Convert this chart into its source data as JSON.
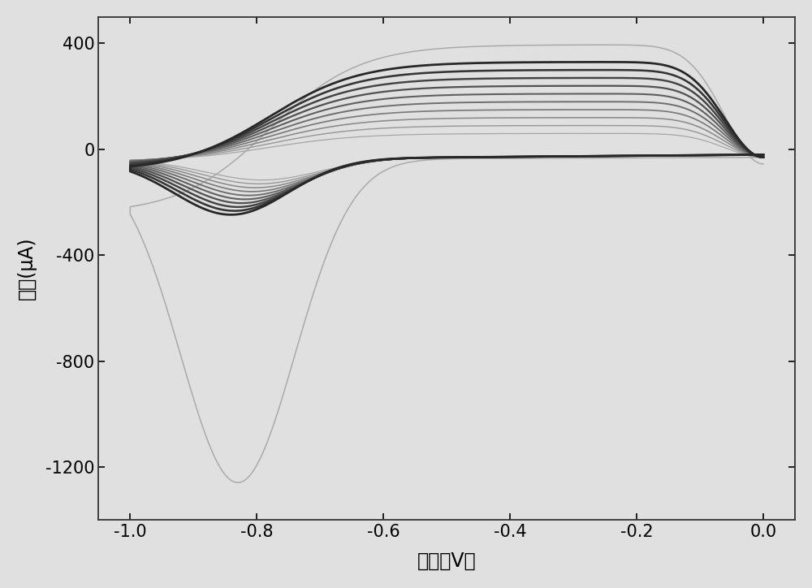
{
  "xlabel": "电压（V）",
  "ylabel": "电流(μA)",
  "xlim": [
    -1.05,
    0.05
  ],
  "ylim": [
    -1400,
    500
  ],
  "xticks": [
    -1.0,
    -0.8,
    -0.6,
    -0.4,
    -0.2,
    0.0
  ],
  "yticks": [
    -1200,
    -800,
    -400,
    0,
    400
  ],
  "background_color": "#e0e0e0",
  "figsize": [
    10.0,
    7.24
  ],
  "dpi": 100,
  "num_small_cycles": 10
}
